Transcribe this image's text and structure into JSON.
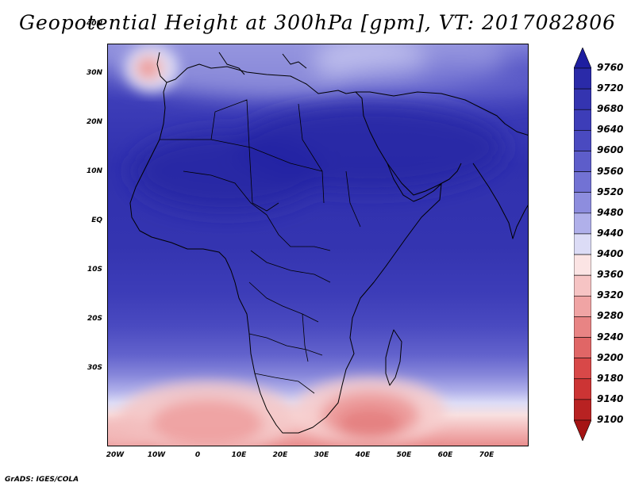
{
  "title": "Geopotential Height at 300hPa [gpm], VT: 2017082806",
  "credit": "GrADS: IGES/COLA",
  "map": {
    "lat_labels": [
      "40N",
      "30N",
      "20N",
      "10N",
      "EQ",
      "10S",
      "20S",
      "30S"
    ],
    "lon_labels": [
      "20W",
      "10W",
      "0",
      "10E",
      "20E",
      "30E",
      "40E",
      "50E",
      "60E",
      "70E"
    ]
  },
  "colorbar": {
    "levels": [
      "9760",
      "9720",
      "9680",
      "9640",
      "9600",
      "9560",
      "9520",
      "9480",
      "9440",
      "9400",
      "9360",
      "9320",
      "9280",
      "9240",
      "9200",
      "9180",
      "9140",
      "9100"
    ],
    "colors": [
      "#1e1ea0",
      "#2a2aa8",
      "#3434b0",
      "#3d3db8",
      "#4a4ac0",
      "#5d5dca",
      "#7272d4",
      "#8d8dde",
      "#b0b0ea",
      "#dcdcf6",
      "#fbe4e4",
      "#f6c4c4",
      "#f0a4a4",
      "#e88484",
      "#e06666",
      "#d84848",
      "#cc3434",
      "#b82222",
      "#a51414"
    ]
  }
}
